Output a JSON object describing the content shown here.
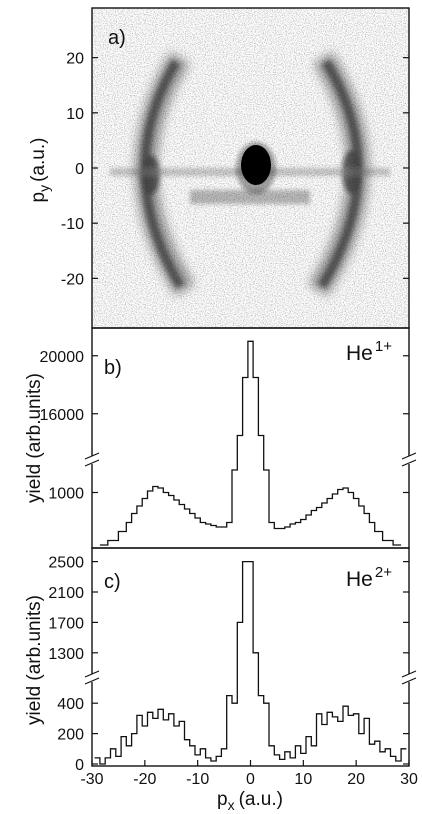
{
  "chart_data": [
    {
      "type": "heatmap",
      "panel_label": "a)",
      "xlim": [
        -30,
        30
      ],
      "ylim": [
        -29,
        29
      ],
      "ylabel": "p",
      "ylabel_sub": "y",
      "ylabel_unit": "(a.u.)",
      "yticks": [
        -20,
        -10,
        0,
        10,
        20
      ],
      "features": [
        {
          "kind": "central_spot",
          "px": 0,
          "py": 0.5
        },
        {
          "kind": "ring",
          "radius": 19,
          "px_range": [
            -21,
            21
          ]
        }
      ]
    },
    {
      "type": "line",
      "panel_label": "b)",
      "ion": "He",
      "charge": "1+",
      "ylabel": "yield (arb.units)",
      "xlim": [
        -30,
        30
      ],
      "broken_axis": true,
      "upper_yticks": [
        16000,
        20000
      ],
      "upper_ylim": [
        13500,
        21500
      ],
      "lower_yticks": [
        1000
      ],
      "lower_ylim": [
        650,
        1150
      ],
      "x": [
        -28,
        -26,
        -24,
        -23,
        -22,
        -21,
        -20,
        -19,
        -18,
        -17,
        -16,
        -15,
        -14,
        -13,
        -12,
        -11,
        -10,
        -9,
        -8,
        -7,
        -6,
        -5,
        -4,
        -3,
        -2,
        -1,
        0,
        1,
        2,
        3,
        4,
        5,
        6,
        7,
        8,
        9,
        10,
        11,
        12,
        13,
        14,
        15,
        16,
        17,
        18,
        19,
        20,
        21,
        22,
        23,
        24,
        26,
        28
      ],
      "y": [
        650,
        680,
        740,
        800,
        860,
        910,
        960,
        1010,
        1040,
        1030,
        1000,
        980,
        950,
        920,
        890,
        860,
        830,
        800,
        790,
        780,
        770,
        770,
        800,
        1150,
        14500,
        18500,
        21000,
        18500,
        14500,
        1150,
        800,
        760,
        760,
        770,
        790,
        800,
        820,
        850,
        880,
        900,
        930,
        960,
        990,
        1020,
        1030,
        1000,
        960,
        910,
        860,
        800,
        740,
        680,
        650
      ]
    },
    {
      "type": "line",
      "panel_label": "c)",
      "ion": "He",
      "charge": "2+",
      "ylabel": "yield (arb.units)",
      "xlabel": "p",
      "xlabel_sub": "x",
      "xlabel_unit": "(a.u.)",
      "xlim": [
        -30,
        30
      ],
      "xticks": [
        -30,
        -20,
        -10,
        0,
        10,
        20,
        30
      ],
      "broken_axis": true,
      "upper_yticks": [
        1300,
        1700,
        2100,
        2500
      ],
      "upper_ylim": [
        1100,
        2600
      ],
      "lower_yticks": [
        0,
        200,
        400
      ],
      "lower_ylim": [
        0,
        500
      ],
      "x": [
        -29,
        -28,
        -27,
        -26,
        -25,
        -24,
        -23,
        -22,
        -21,
        -20,
        -19,
        -18,
        -17,
        -16,
        -15,
        -14,
        -13,
        -12,
        -11,
        -10,
        -9,
        -8,
        -7,
        -6,
        -5,
        -4,
        -3,
        -2,
        -1,
        0,
        1,
        2,
        3,
        4,
        5,
        6,
        7,
        8,
        9,
        10,
        11,
        12,
        13,
        14,
        15,
        16,
        17,
        18,
        19,
        20,
        21,
        22,
        23,
        24,
        25,
        26,
        27,
        28,
        29
      ],
      "y": [
        40,
        0,
        40,
        100,
        50,
        180,
        120,
        200,
        320,
        250,
        340,
        300,
        360,
        290,
        330,
        250,
        280,
        160,
        120,
        60,
        100,
        40,
        20,
        50,
        100,
        450,
        400,
        1700,
        2500,
        2500,
        1300,
        450,
        400,
        120,
        60,
        30,
        80,
        40,
        120,
        70,
        180,
        120,
        330,
        260,
        340,
        310,
        280,
        380,
        320,
        330,
        200,
        300,
        130,
        150,
        80,
        100,
        50,
        20,
        100
      ]
    }
  ]
}
